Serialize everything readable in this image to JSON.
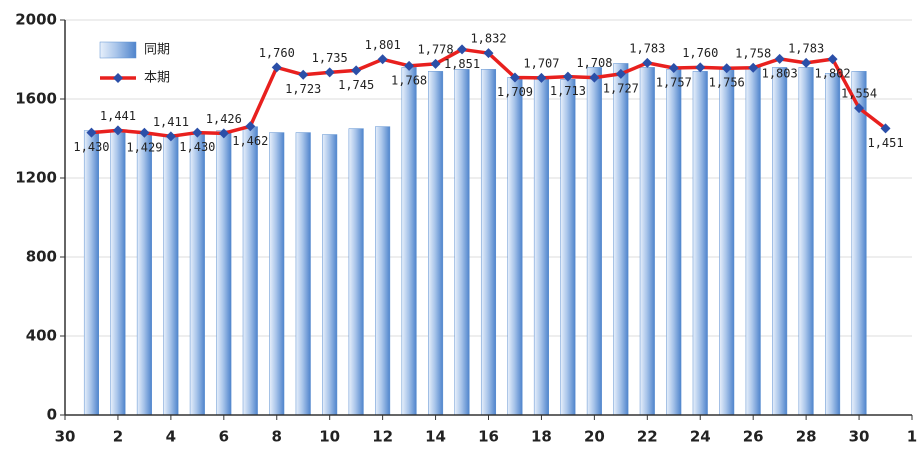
{
  "chart_data": {
    "type": "bar_line",
    "x": [
      1,
      2,
      3,
      4,
      5,
      6,
      7,
      8,
      9,
      10,
      11,
      12,
      13,
      14,
      15,
      16,
      17,
      18,
      19,
      20,
      21,
      22,
      23,
      24,
      25,
      26,
      27,
      28,
      29,
      30,
      31
    ],
    "series": [
      {
        "name": "同期",
        "type": "bar",
        "color": "#5b8fd0",
        "values": [
          1440,
          1440,
          1430,
          1420,
          1430,
          1440,
          1460,
          1430,
          1430,
          1420,
          1450,
          1460,
          1760,
          1740,
          1750,
          1750,
          1710,
          1700,
          1700,
          1760,
          1780,
          1760,
          1750,
          1740,
          1760,
          1760,
          1760,
          1760,
          1730,
          1740,
          null
        ]
      },
      {
        "name": "本期",
        "type": "line",
        "color": "#e8201e",
        "marker_color": "#2b4fa8",
        "values": [
          1430,
          1441,
          1429,
          1411,
          1430,
          1426,
          1462,
          1760,
          1723,
          1735,
          1745,
          1801,
          1768,
          1778,
          1851,
          1832,
          1709,
          1707,
          1713,
          1708,
          1727,
          1783,
          1757,
          1760,
          1756,
          1758,
          1803,
          1783,
          1802,
          1554,
          1451
        ],
        "value_labels": [
          "1,430",
          "1,441",
          "1,429",
          "1,411",
          "1,430",
          "1,426",
          "1,462",
          "1,760",
          "1,723",
          "1,735",
          "1,745",
          "1,801",
          "1,768",
          "1,778",
          "1,851",
          "1,832",
          "1,709",
          "1,707",
          "1,713",
          "1,708",
          "1,727",
          "1,783",
          "1,757",
          "1,760",
          "1,756",
          "1,758",
          "1,803",
          "1,783",
          "1,802",
          "1,554",
          "1,451"
        ]
      }
    ],
    "xlim": [
      0,
      32
    ],
    "xticks": [
      {
        "value": 0,
        "label": "30"
      },
      2,
      4,
      6,
      8,
      10,
      12,
      14,
      16,
      18,
      20,
      22,
      24,
      26,
      28,
      30,
      {
        "value": 32,
        "label": "1"
      }
    ],
    "ylim": [
      0,
      2000
    ],
    "yticks": [
      0,
      400,
      800,
      1200,
      1600,
      2000
    ],
    "grid": true,
    "legend": "upper left"
  }
}
